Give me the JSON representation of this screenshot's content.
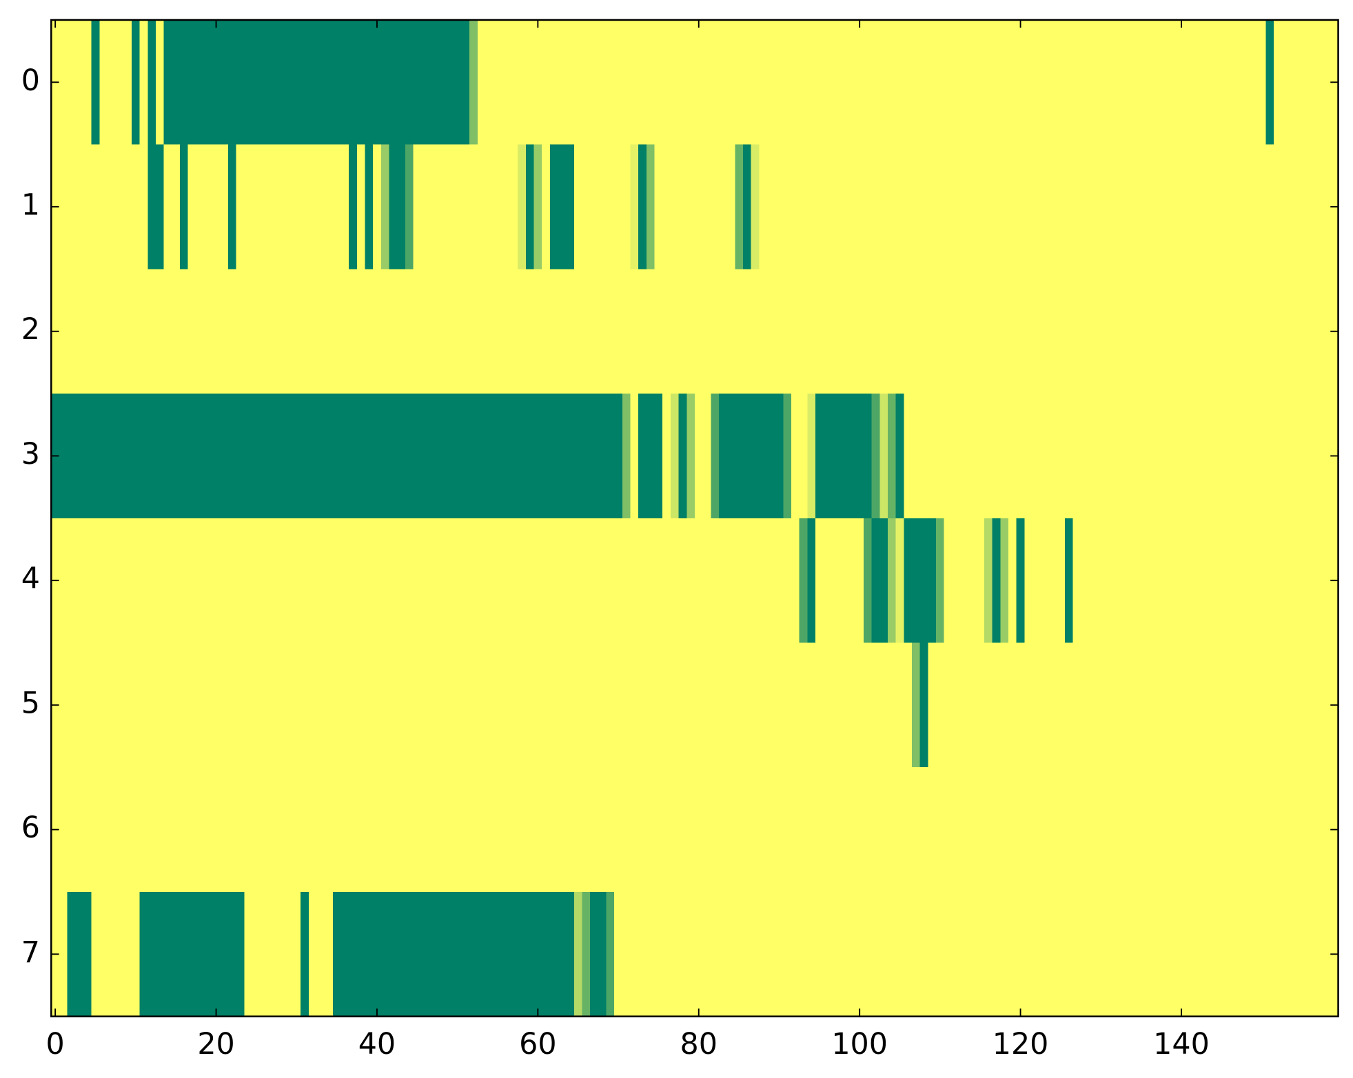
{
  "chart_data": {
    "type": "heatmap",
    "colormap": "summer_r",
    "xlim": [
      -0.5,
      159.5
    ],
    "ylim": [
      7.5,
      -0.5
    ],
    "xticks": [
      0,
      20,
      40,
      60,
      80,
      100,
      120,
      140
    ],
    "yticks": [
      0,
      1,
      2,
      3,
      4,
      5,
      6,
      7
    ],
    "z": [
      [
        0,
        0,
        0,
        0,
        0,
        1,
        0,
        0,
        0,
        0,
        1,
        0,
        1,
        0,
        1,
        1,
        1,
        1,
        1,
        1,
        1,
        1,
        1,
        1,
        1,
        1,
        1,
        1,
        1,
        1,
        1,
        1,
        1,
        1,
        1,
        1,
        1,
        1,
        1,
        1,
        1,
        1,
        1,
        1,
        1,
        1,
        1,
        1,
        1,
        1,
        1,
        1,
        0.5,
        0,
        0,
        0,
        0,
        0,
        0,
        0,
        0,
        0,
        0,
        0,
        0,
        0,
        0,
        0,
        0,
        0,
        0,
        0,
        0,
        0,
        0,
        0,
        0,
        0,
        0,
        0,
        0,
        0,
        0,
        0,
        0,
        0,
        0,
        0,
        0,
        0,
        0,
        0,
        0,
        0,
        0,
        0,
        0,
        0,
        0,
        0,
        0,
        0,
        0,
        0,
        0,
        0,
        0,
        0,
        0,
        0,
        0,
        0,
        0,
        0,
        0,
        0,
        0,
        0,
        0,
        0,
        0,
        0,
        0,
        0,
        0,
        0,
        0,
        0,
        0,
        0,
        0,
        0,
        0,
        0,
        0,
        0,
        0,
        0,
        0,
        0,
        0,
        0,
        0,
        0,
        0,
        0,
        0,
        0,
        0,
        0,
        0,
        1,
        0,
        0,
        0,
        0,
        0,
        0,
        0,
        0
      ],
      [
        0,
        0,
        0,
        0,
        0,
        0,
        0,
        0,
        0,
        0,
        0,
        0,
        1,
        1,
        0,
        0,
        1,
        0,
        0,
        0,
        0,
        0,
        1,
        0,
        0,
        0,
        0,
        0,
        0,
        0,
        0,
        0,
        0,
        0,
        0,
        0,
        0,
        1,
        0,
        1,
        0,
        0.4,
        1,
        1,
        0.7,
        0,
        0,
        0,
        0,
        0,
        0,
        0,
        0,
        0,
        0,
        0,
        0,
        0,
        0.15,
        1,
        0.4,
        0,
        1,
        1,
        1,
        0,
        0,
        0,
        0,
        0,
        0,
        0,
        0.1,
        1,
        0.5,
        0,
        0,
        0,
        0,
        0,
        0,
        0,
        0,
        0,
        0,
        0.6,
        1,
        0.15,
        0,
        0,
        0,
        0,
        0,
        0,
        0,
        0,
        0,
        0,
        0,
        0,
        0,
        0,
        0,
        0,
        0,
        0,
        0,
        0,
        0,
        0,
        0,
        0,
        0,
        0,
        0,
        0,
        0,
        0,
        0,
        0,
        0,
        0,
        0,
        0,
        0,
        0,
        0,
        0,
        0,
        0,
        0,
        0,
        0,
        0,
        0,
        0,
        0,
        0,
        0,
        0,
        0,
        0,
        0,
        0,
        0,
        0,
        0,
        0,
        0,
        0,
        0,
        0,
        0,
        0,
        0,
        0,
        0,
        0,
        0,
        0
      ],
      [
        0,
        0,
        0,
        0,
        0,
        0,
        0,
        0,
        0,
        0,
        0,
        0,
        0,
        0,
        0,
        0,
        0,
        0,
        0,
        0,
        0,
        0,
        0,
        0,
        0,
        0,
        0,
        0,
        0,
        0,
        0,
        0,
        0,
        0,
        0,
        0,
        0,
        0,
        0,
        0,
        0,
        0,
        0,
        0,
        0,
        0,
        0,
        0,
        0,
        0,
        0,
        0,
        0,
        0,
        0,
        0,
        0,
        0,
        0,
        0,
        0,
        0,
        0,
        0,
        0,
        0,
        0,
        0,
        0,
        0,
        0,
        0,
        0,
        0,
        0,
        0,
        0,
        0,
        0,
        0,
        0,
        0,
        0,
        0,
        0,
        0,
        0,
        0,
        0,
        0,
        0,
        0,
        0,
        0,
        0,
        0,
        0,
        0,
        0,
        0,
        0,
        0,
        0,
        0,
        0,
        0,
        0,
        0,
        0,
        0,
        0,
        0,
        0,
        0,
        0,
        0,
        0,
        0,
        0,
        0,
        0,
        0,
        0,
        0,
        0,
        0,
        0,
        0,
        0,
        0,
        0,
        0,
        0,
        0,
        0,
        0,
        0,
        0,
        0,
        0,
        0,
        0,
        0,
        0,
        0,
        0,
        0,
        0,
        0,
        0,
        0,
        0,
        0,
        0,
        0,
        0,
        0,
        0,
        0,
        0
      ],
      [
        1,
        1,
        1,
        1,
        1,
        1,
        1,
        1,
        1,
        1,
        1,
        1,
        1,
        1,
        1,
        1,
        1,
        1,
        1,
        1,
        1,
        1,
        1,
        1,
        1,
        1,
        1,
        1,
        1,
        1,
        1,
        1,
        1,
        1,
        1,
        1,
        1,
        1,
        1,
        1,
        1,
        1,
        1,
        1,
        1,
        1,
        1,
        1,
        1,
        1,
        1,
        1,
        1,
        1,
        1,
        1,
        1,
        1,
        1,
        1,
        1,
        1,
        1,
        1,
        1,
        1,
        1,
        1,
        1,
        1,
        1,
        0.5,
        0,
        1,
        1,
        1,
        0,
        0.2,
        1,
        0.4,
        0,
        0,
        0.7,
        1,
        1,
        1,
        1,
        1,
        1,
        1,
        1,
        0.7,
        0,
        0,
        0.15,
        1,
        1,
        1,
        1,
        1,
        1,
        1,
        0.7,
        0.2,
        0.6,
        1,
        0,
        0,
        0,
        0,
        0,
        0,
        0,
        0,
        0,
        0,
        0,
        0,
        0,
        0,
        0,
        0,
        0,
        0,
        0,
        0,
        0,
        0,
        0,
        0,
        0,
        0,
        0,
        0,
        0,
        0,
        0,
        0,
        0,
        0,
        0,
        0,
        0,
        0,
        0,
        0,
        0,
        0,
        0,
        0,
        0,
        0,
        0,
        0,
        0,
        0,
        0,
        0,
        0,
        0
      ],
      [
        0,
        0,
        0,
        0,
        0,
        0,
        0,
        0,
        0,
        0,
        0,
        0,
        0,
        0,
        0,
        0,
        0,
        0,
        0,
        0,
        0,
        0,
        0,
        0,
        0,
        0,
        0,
        0,
        0,
        0,
        0,
        0,
        0,
        0,
        0,
        0,
        0,
        0,
        0,
        0,
        0,
        0,
        0,
        0,
        0,
        0,
        0,
        0,
        0,
        0,
        0,
        0,
        0,
        0,
        0,
        0,
        0,
        0,
        0,
        0,
        0,
        0,
        0,
        0,
        0,
        0,
        0,
        0,
        0,
        0,
        0,
        0,
        0,
        0,
        0,
        0,
        0,
        0,
        0,
        0,
        0,
        0,
        0,
        0,
        0,
        0,
        0,
        0,
        0,
        0,
        0,
        0,
        0,
        0.7,
        1,
        0,
        0,
        0,
        0,
        0,
        0,
        0.7,
        1,
        1,
        0.4,
        0.1,
        1,
        1,
        1,
        1,
        0.6,
        0,
        0,
        0,
        0,
        0,
        0.3,
        1,
        0.4,
        0,
        1,
        0,
        0,
        0,
        0,
        0,
        1,
        0,
        0,
        0,
        0,
        0,
        0,
        0,
        0,
        0,
        0,
        0,
        0,
        0,
        0,
        0,
        0,
        0,
        0,
        0,
        0,
        0,
        0,
        0,
        0,
        0,
        0,
        0,
        0,
        0,
        0,
        0,
        0,
        0
      ],
      [
        0,
        0,
        0,
        0,
        0,
        0,
        0,
        0,
        0,
        0,
        0,
        0,
        0,
        0,
        0,
        0,
        0,
        0,
        0,
        0,
        0,
        0,
        0,
        0,
        0,
        0,
        0,
        0,
        0,
        0,
        0,
        0,
        0,
        0,
        0,
        0,
        0,
        0,
        0,
        0,
        0,
        0,
        0,
        0,
        0,
        0,
        0,
        0,
        0,
        0,
        0,
        0,
        0,
        0,
        0,
        0,
        0,
        0,
        0,
        0,
        0,
        0,
        0,
        0,
        0,
        0,
        0,
        0,
        0,
        0,
        0,
        0,
        0,
        0,
        0,
        0,
        0,
        0,
        0,
        0,
        0,
        0,
        0,
        0,
        0,
        0,
        0,
        0,
        0,
        0,
        0,
        0,
        0,
        0,
        0,
        0,
        0,
        0,
        0,
        0,
        0,
        0,
        0,
        0,
        0,
        0,
        0,
        0.5,
        1,
        0,
        0,
        0,
        0,
        0,
        0,
        0,
        0,
        0,
        0,
        0,
        0,
        0,
        0,
        0,
        0,
        0,
        0,
        0,
        0,
        0,
        0,
        0,
        0,
        0,
        0,
        0,
        0,
        0,
        0,
        0,
        0,
        0,
        0,
        0,
        0,
        0,
        0,
        0,
        0,
        0,
        0,
        0,
        0,
        0,
        0,
        0,
        0,
        0,
        0,
        0
      ],
      [
        0,
        0,
        0,
        0,
        0,
        0,
        0,
        0,
        0,
        0,
        0,
        0,
        0,
        0,
        0,
        0,
        0,
        0,
        0,
        0,
        0,
        0,
        0,
        0,
        0,
        0,
        0,
        0,
        0,
        0,
        0,
        0,
        0,
        0,
        0,
        0,
        0,
        0,
        0,
        0,
        0,
        0,
        0,
        0,
        0,
        0,
        0,
        0,
        0,
        0,
        0,
        0,
        0,
        0,
        0,
        0,
        0,
        0,
        0,
        0,
        0,
        0,
        0,
        0,
        0,
        0,
        0,
        0,
        0,
        0,
        0,
        0,
        0,
        0,
        0,
        0,
        0,
        0,
        0,
        0,
        0,
        0,
        0,
        0,
        0,
        0,
        0,
        0,
        0,
        0,
        0,
        0,
        0,
        0,
        0,
        0,
        0,
        0,
        0,
        0,
        0,
        0,
        0,
        0,
        0,
        0,
        0,
        0,
        0,
        0,
        0,
        0,
        0,
        0,
        0,
        0,
        0,
        0,
        0,
        0,
        0,
        0,
        0,
        0,
        0,
        0,
        0,
        0,
        0,
        0,
        0,
        0,
        0,
        0,
        0,
        0,
        0,
        0,
        0,
        0,
        0,
        0,
        0,
        0,
        0,
        0,
        0,
        0,
        0,
        0,
        0,
        0,
        0,
        0,
        0,
        0,
        0,
        0,
        0,
        0
      ],
      [
        0,
        0,
        1,
        1,
        1,
        0,
        0,
        0,
        0,
        0,
        0,
        1,
        1,
        1,
        1,
        1,
        1,
        1,
        1,
        1,
        1,
        1,
        1,
        1,
        0,
        0,
        0,
        0,
        0,
        0,
        0,
        1,
        0,
        0,
        0,
        1,
        1,
        1,
        1,
        1,
        1,
        1,
        1,
        1,
        1,
        1,
        1,
        1,
        1,
        1,
        1,
        1,
        1,
        1,
        1,
        1,
        1,
        1,
        1,
        1,
        1,
        1,
        1,
        1,
        1,
        0.3,
        0.6,
        1,
        1,
        0.7,
        0,
        0,
        0,
        0,
        0,
        0,
        0,
        0,
        0,
        0,
        0,
        0,
        0,
        0,
        0,
        0,
        0,
        0,
        0,
        0,
        0,
        0,
        0,
        0,
        0,
        0,
        0,
        0,
        0,
        0,
        0,
        0,
        0,
        0,
        0,
        0,
        0,
        0,
        0,
        0,
        0,
        0,
        0,
        0,
        0,
        0,
        0,
        0,
        0,
        0,
        0,
        0,
        0,
        0,
        0,
        0,
        0,
        0,
        0,
        0,
        0,
        0,
        0,
        0,
        0,
        0,
        0,
        0,
        0,
        0,
        0,
        0,
        0,
        0,
        0,
        0,
        0,
        0,
        0,
        0,
        0,
        0,
        0,
        0,
        0,
        0,
        0,
        0,
        0,
        0
      ]
    ]
  }
}
